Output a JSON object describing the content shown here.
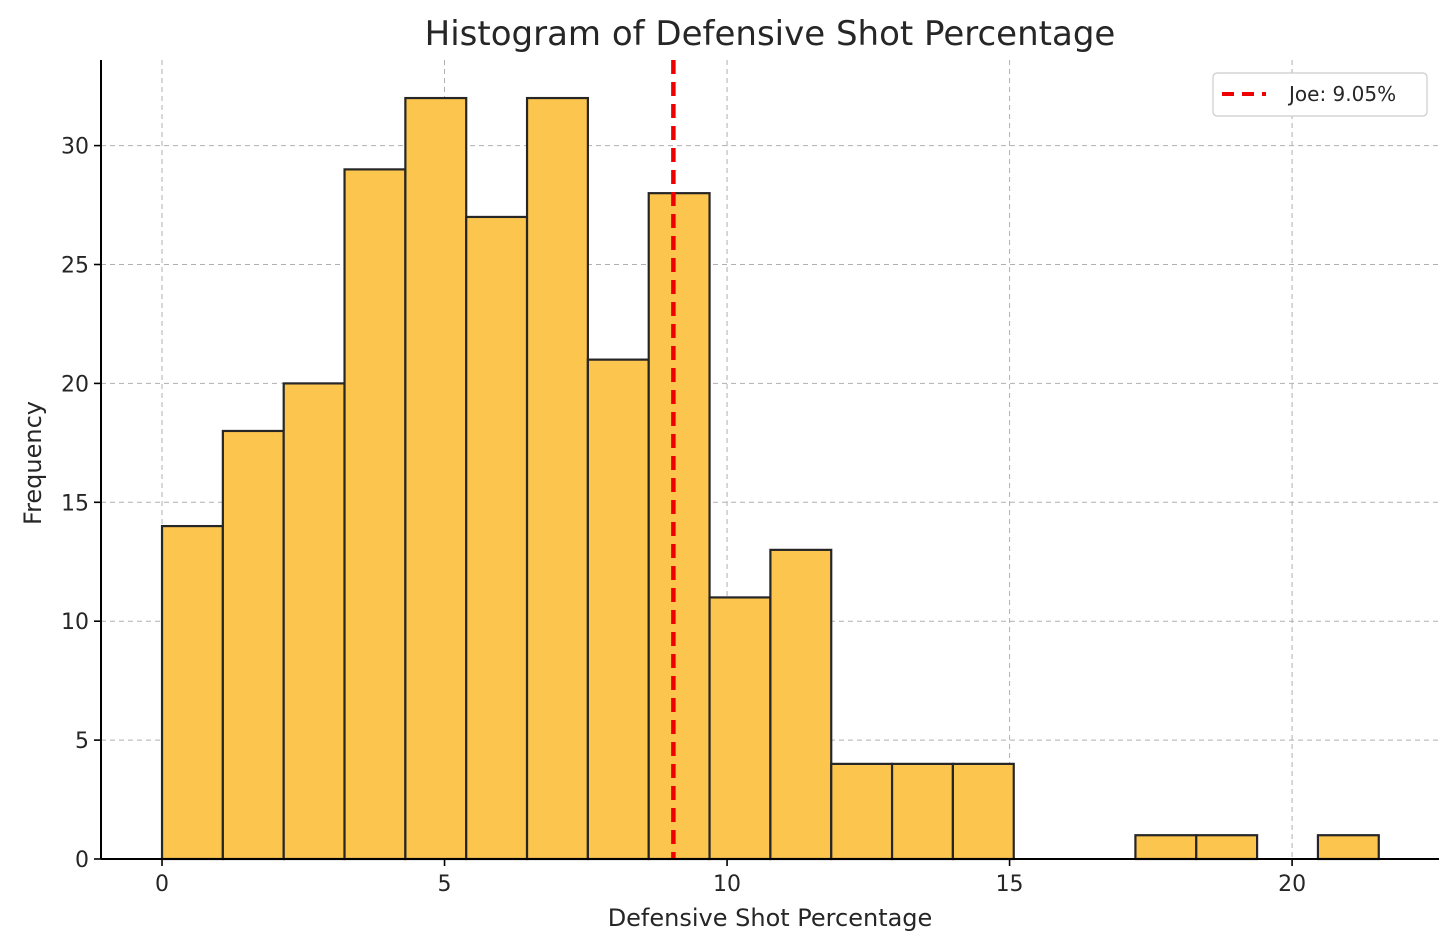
{
  "chart_data": {
    "type": "bar",
    "title": "Histogram of Defensive Shot Percentage",
    "xlabel": "Defensive Shot Percentage",
    "ylabel": "Frequency",
    "xlim": [
      -1.08,
      22.6
    ],
    "ylim": [
      0,
      33.6
    ],
    "x_ticks": [
      0,
      5,
      10,
      15,
      20
    ],
    "y_ticks": [
      0,
      5,
      10,
      15,
      20,
      25,
      30
    ],
    "grid": true,
    "bin_start": 0.0,
    "bin_width": 1.0767,
    "counts": [
      14,
      18,
      20,
      29,
      32,
      27,
      32,
      21,
      28,
      11,
      13,
      4,
      4,
      4,
      0,
      0,
      1,
      1,
      0,
      1
    ],
    "bar_color": "#FCC54E",
    "bar_edge_color": "#262626",
    "reference_line": {
      "x": 9.05,
      "label": "Joe: 9.05%",
      "color": "#EE0000"
    },
    "legend": {
      "location": "top-right",
      "entries": [
        "Joe: 9.05%"
      ]
    }
  }
}
